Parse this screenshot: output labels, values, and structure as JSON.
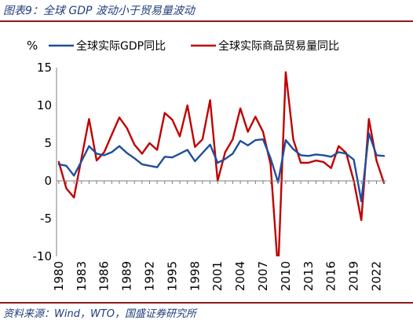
{
  "caption": "图表9：全球 GDP 波动小于贸易量波动",
  "source": "资料来源：Wind，WTO，国盛证券研究所",
  "chart_data": {
    "type": "line",
    "ylabel": "%",
    "ylim": [
      -10,
      15
    ],
    "yticks": [
      -10,
      -5,
      0,
      5,
      10,
      15
    ],
    "xticks": [
      "1980",
      "1983",
      "1986",
      "1989",
      "1992",
      "1995",
      "1998",
      "2001",
      "2004",
      "2007",
      "2010",
      "2013",
      "2016",
      "2019",
      "2022"
    ],
    "legend_position": "top",
    "grid": false,
    "x": [
      1980,
      1981,
      1982,
      1983,
      1984,
      1985,
      1986,
      1987,
      1988,
      1989,
      1990,
      1991,
      1992,
      1993,
      1994,
      1995,
      1996,
      1997,
      1998,
      1999,
      2000,
      2001,
      2002,
      2003,
      2004,
      2005,
      2006,
      2007,
      2008,
      2009,
      2010,
      2011,
      2012,
      2013,
      2014,
      2015,
      2016,
      2017,
      2018,
      2019,
      2020,
      2021,
      2022,
      2023
    ],
    "series": [
      {
        "name": "全球实际GDP同比",
        "color": "#1f4e9c",
        "values": [
          2.2,
          2.0,
          0.7,
          2.6,
          4.6,
          3.6,
          3.4,
          3.8,
          4.6,
          3.7,
          3.0,
          2.2,
          2.0,
          1.8,
          3.2,
          3.1,
          3.6,
          4.1,
          2.6,
          3.7,
          4.8,
          2.4,
          2.9,
          3.6,
          5.3,
          4.7,
          5.4,
          5.5,
          3.0,
          -0.2,
          5.4,
          4.2,
          3.4,
          3.3,
          3.5,
          3.4,
          3.2,
          3.8,
          3.6,
          2.8,
          -2.7,
          6.3,
          3.4,
          3.3
        ]
      },
      {
        "name": "全球实际商品贸易量同比",
        "color": "#c00000",
        "values": [
          2.5,
          -1.0,
          -2.2,
          3.0,
          8.2,
          2.7,
          3.8,
          6.1,
          8.4,
          7.0,
          4.8,
          3.6,
          5.0,
          4.1,
          9.0,
          8.1,
          5.9,
          10.0,
          4.5,
          5.5,
          10.7,
          0.0,
          3.8,
          5.5,
          9.6,
          6.5,
          8.5,
          6.5,
          2.2,
          -12.0,
          14.4,
          5.5,
          2.4,
          2.4,
          2.7,
          2.5,
          1.7,
          4.6,
          3.7,
          0.0,
          -5.2,
          8.2,
          2.7,
          -0.3
        ]
      }
    ]
  }
}
